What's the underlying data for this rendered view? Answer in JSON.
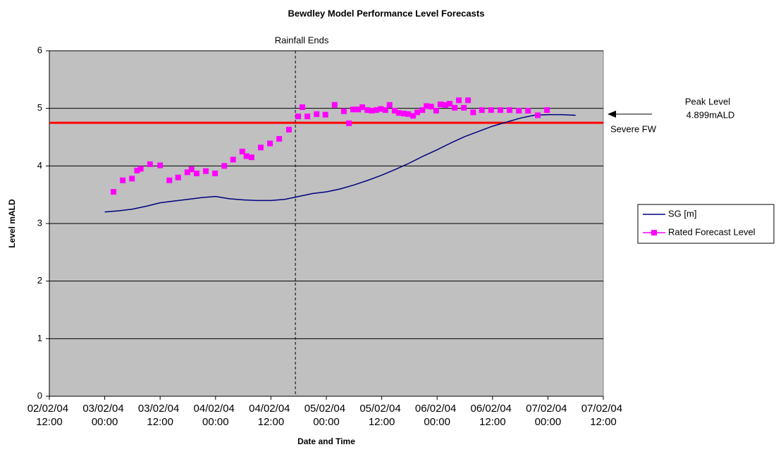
{
  "chart_data": {
    "type": "line",
    "title": "Bewdley Model Performance Level Forecasts",
    "xlabel": "Date and Time",
    "ylabel": "Level mALD",
    "xlim": [
      12,
      132
    ],
    "xticks": [
      {
        "value": 12,
        "label": "02/02/04 12:00"
      },
      {
        "value": 24,
        "label": "03/02/04 00:00"
      },
      {
        "value": 36,
        "label": "03/02/04 12:00"
      },
      {
        "value": 48,
        "label": "04/02/04 00:00"
      },
      {
        "value": 60,
        "label": "04/02/04 12:00"
      },
      {
        "value": 72,
        "label": "05/02/04 00:00"
      },
      {
        "value": 84,
        "label": "05/02/04 12:00"
      },
      {
        "value": 96,
        "label": "06/02/04 00:00"
      },
      {
        "value": 108,
        "label": "06/02/04 12:00"
      },
      {
        "value": 120,
        "label": "07/02/04 00:00"
      },
      {
        "value": 132,
        "label": "07/02/04 12:00"
      }
    ],
    "ylim": [
      0,
      6
    ],
    "yticks": [
      0,
      1,
      2,
      3,
      4,
      5,
      6
    ],
    "grid": true,
    "plot_background": "#c0c0c0",
    "legend": "right",
    "series": [
      {
        "name": "SG [m]",
        "color": "#000080",
        "marker": "none",
        "x": [
          24,
          27,
          30,
          33,
          36,
          39,
          42,
          45,
          48,
          51,
          54,
          57,
          60,
          63,
          66,
          69,
          72,
          75,
          78,
          81,
          84,
          87,
          90,
          93,
          96,
          99,
          102,
          105,
          108,
          111,
          114,
          117,
          120,
          123,
          126
        ],
        "values": [
          3.2,
          3.22,
          3.25,
          3.3,
          3.36,
          3.39,
          3.42,
          3.45,
          3.47,
          3.43,
          3.41,
          3.4,
          3.4,
          3.42,
          3.47,
          3.52,
          3.55,
          3.6,
          3.67,
          3.75,
          3.84,
          3.94,
          4.05,
          4.17,
          4.28,
          4.4,
          4.51,
          4.6,
          4.69,
          4.76,
          4.83,
          4.88,
          4.89,
          4.89,
          4.88
        ]
      },
      {
        "name": "Rated Forecast Level",
        "color": "#ff00ff",
        "marker": "square",
        "x": [
          25.9,
          27.9,
          29.9,
          31.0,
          31.8,
          33.8,
          36.0,
          38.0,
          39.9,
          41.9,
          42.8,
          43.9,
          45.9,
          47.9,
          49.9,
          51.8,
          53.8,
          54.7,
          55.8,
          57.8,
          59.8,
          61.8,
          63.9,
          65.9,
          66.8,
          67.9,
          69.9,
          71.8,
          73.8,
          75.8,
          76.9,
          77.8,
          78.9,
          79.8,
          80.9,
          81.8,
          82.8,
          83.8,
          84.8,
          85.7,
          86.8,
          87.7,
          88.8,
          89.7,
          90.8,
          91.7,
          92.8,
          93.7,
          94.7,
          95.8,
          96.7,
          97.8,
          98.7,
          99.8,
          100.7,
          101.8,
          102.7,
          103.8,
          105.7,
          107.7,
          109.7,
          111.7,
          113.7,
          115.7,
          117.8,
          119.8
        ],
        "values": [
          3.55,
          3.75,
          3.78,
          3.92,
          3.95,
          4.03,
          4.01,
          3.75,
          3.8,
          3.89,
          3.94,
          3.87,
          3.91,
          3.87,
          4.0,
          4.11,
          4.25,
          4.17,
          4.15,
          4.32,
          4.39,
          4.47,
          4.63,
          4.86,
          5.02,
          4.86,
          4.9,
          4.89,
          5.06,
          4.95,
          4.74,
          4.98,
          4.98,
          5.02,
          4.97,
          4.96,
          4.97,
          4.99,
          4.97,
          5.06,
          4.96,
          4.92,
          4.91,
          4.9,
          4.87,
          4.93,
          4.97,
          5.04,
          5.03,
          4.96,
          5.07,
          5.06,
          5.08,
          5.01,
          5.14,
          5.01,
          5.14,
          4.93,
          4.97,
          4.97,
          4.97,
          4.97,
          4.96,
          4.96,
          4.88,
          4.97
        ]
      }
    ],
    "vline": {
      "label": "Rainfall Ends",
      "x": 65.3
    },
    "hline": {
      "label": "Severe FW",
      "y": 4.75,
      "color": "#ff0000"
    },
    "peak": {
      "label": [
        "Peak Level",
        "4.899mALD"
      ],
      "y": 4.899
    }
  }
}
